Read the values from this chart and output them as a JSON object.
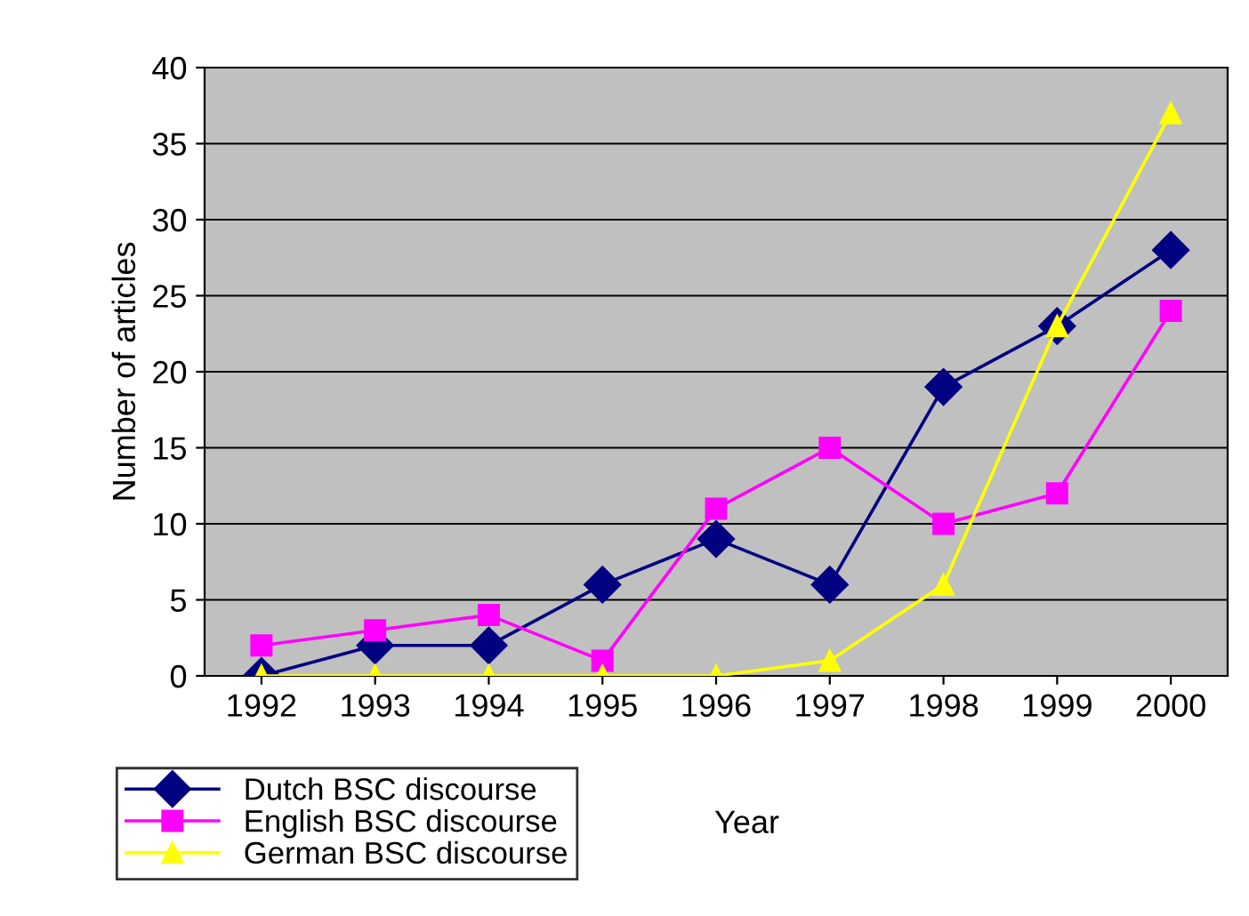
{
  "chart_data": {
    "type": "line",
    "xlabel": "Year",
    "ylabel": "Number of articles",
    "categories": [
      "1992",
      "1993",
      "1994",
      "1995",
      "1996",
      "1997",
      "1998",
      "1999",
      "2000"
    ],
    "series": [
      {
        "name": "Dutch BSC discourse",
        "color": "#000080",
        "marker": "diamond",
        "values": [
          0,
          2,
          2,
          6,
          9,
          6,
          19,
          23,
          28
        ]
      },
      {
        "name": "English BSC discourse",
        "color": "#ff00ff",
        "marker": "square",
        "values": [
          2,
          3,
          4,
          1,
          11,
          15,
          10,
          12,
          24
        ]
      },
      {
        "name": "German BSC discourse",
        "color": "#ffff00",
        "marker": "triangle",
        "values": [
          0,
          0,
          0,
          0,
          0,
          1,
          6,
          23,
          37
        ]
      }
    ],
    "ylim": [
      0,
      40
    ],
    "yticks": [
      0,
      5,
      10,
      15,
      20,
      25,
      30,
      35,
      40
    ],
    "grid": "y",
    "legend": "bottom left",
    "line_style": "solid"
  }
}
